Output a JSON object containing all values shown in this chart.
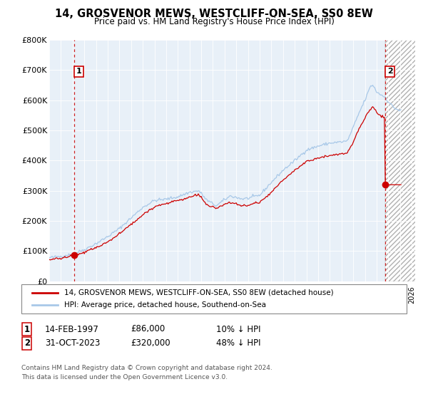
{
  "title": "14, GROSVENOR MEWS, WESTCLIFF-ON-SEA, SS0 8EW",
  "subtitle": "Price paid vs. HM Land Registry's House Price Index (HPI)",
  "legend_line1": "14, GROSVENOR MEWS, WESTCLIFF-ON-SEA, SS0 8EW (detached house)",
  "legend_line2": "HPI: Average price, detached house, Southend-on-Sea",
  "transaction1_date": "14-FEB-1997",
  "transaction1_price": 86000,
  "transaction1_label": "£14-FEB-1997          £86,000          10% ↓ HPI",
  "transaction2_date": "31-OCT-2023",
  "transaction2_price": 320000,
  "transaction2_label": "31-OCT-2023          £320,000          48% ↓ HPI",
  "transaction1_hpi": "10% ↓ HPI",
  "transaction2_hpi": "48% ↓ HPI",
  "footer": "Contains HM Land Registry data © Crown copyright and database right 2024.\nThis data is licensed under the Open Government Licence v3.0.",
  "bg_color": "#e8f0f8",
  "hpi_line_color": "#a8c8e8",
  "price_line_color": "#cc0000",
  "vline_color": "#cc0000",
  "marker_color": "#cc0000",
  "box_edge_color": "#cc0000",
  "ylim": [
    0,
    800000
  ],
  "yticks": [
    0,
    100000,
    200000,
    300000,
    400000,
    500000,
    600000,
    700000,
    800000
  ],
  "x_start_year": 1995,
  "x_end_year": 2026,
  "t1_year": 1997.125,
  "t2_year": 2023.75,
  "t1_price": 86000,
  "t2_price": 320000
}
